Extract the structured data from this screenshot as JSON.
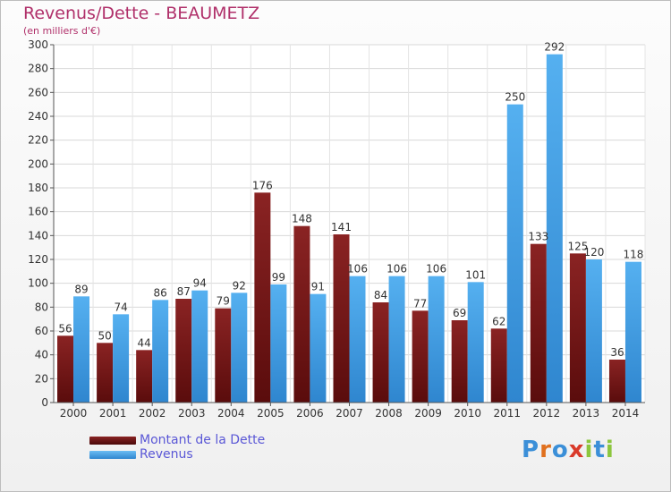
{
  "title": "Revenus/Dette - BEAUMETZ",
  "subtitle": "(en milliers d'€)",
  "colors": {
    "dette": "#7a1a1a",
    "revenus": "#4aa3e6",
    "title": "#b0306a",
    "legend_text": "#5a57d6"
  },
  "legend": {
    "dette_label": "Montant de la Dette",
    "revenus_label": "Revenus"
  },
  "logo": {
    "letters": [
      "P",
      "r",
      "o",
      "x",
      "i",
      "t",
      "i"
    ],
    "colors": [
      "#3b8fd8",
      "#e0701e",
      "#3b8fd8",
      "#d93a2a",
      "#8cc63e",
      "#3b8fd8",
      "#8cc63e"
    ]
  },
  "chart_data": {
    "type": "bar",
    "title": "Revenus/Dette - BEAUMETZ",
    "subtitle": "(en milliers d'€)",
    "categories": [
      "2000",
      "2001",
      "2002",
      "2003",
      "2004",
      "2005",
      "2006",
      "2007",
      "2008",
      "2009",
      "2010",
      "2011",
      "2012",
      "2013",
      "2014"
    ],
    "series": [
      {
        "name": "Montant de la Dette",
        "values": [
          56,
          50,
          44,
          87,
          79,
          176,
          148,
          141,
          84,
          77,
          69,
          62,
          133,
          125,
          36
        ]
      },
      {
        "name": "Revenus",
        "values": [
          89,
          74,
          86,
          94,
          92,
          99,
          91,
          106,
          106,
          106,
          101,
          250,
          292,
          120,
          118
        ]
      }
    ],
    "ylim": [
      0,
      300
    ],
    "yticks": [
      0,
      20,
      40,
      60,
      80,
      100,
      120,
      140,
      160,
      180,
      200,
      220,
      240,
      260,
      280,
      300
    ],
    "grid": true,
    "legend_position": "bottom-left"
  }
}
